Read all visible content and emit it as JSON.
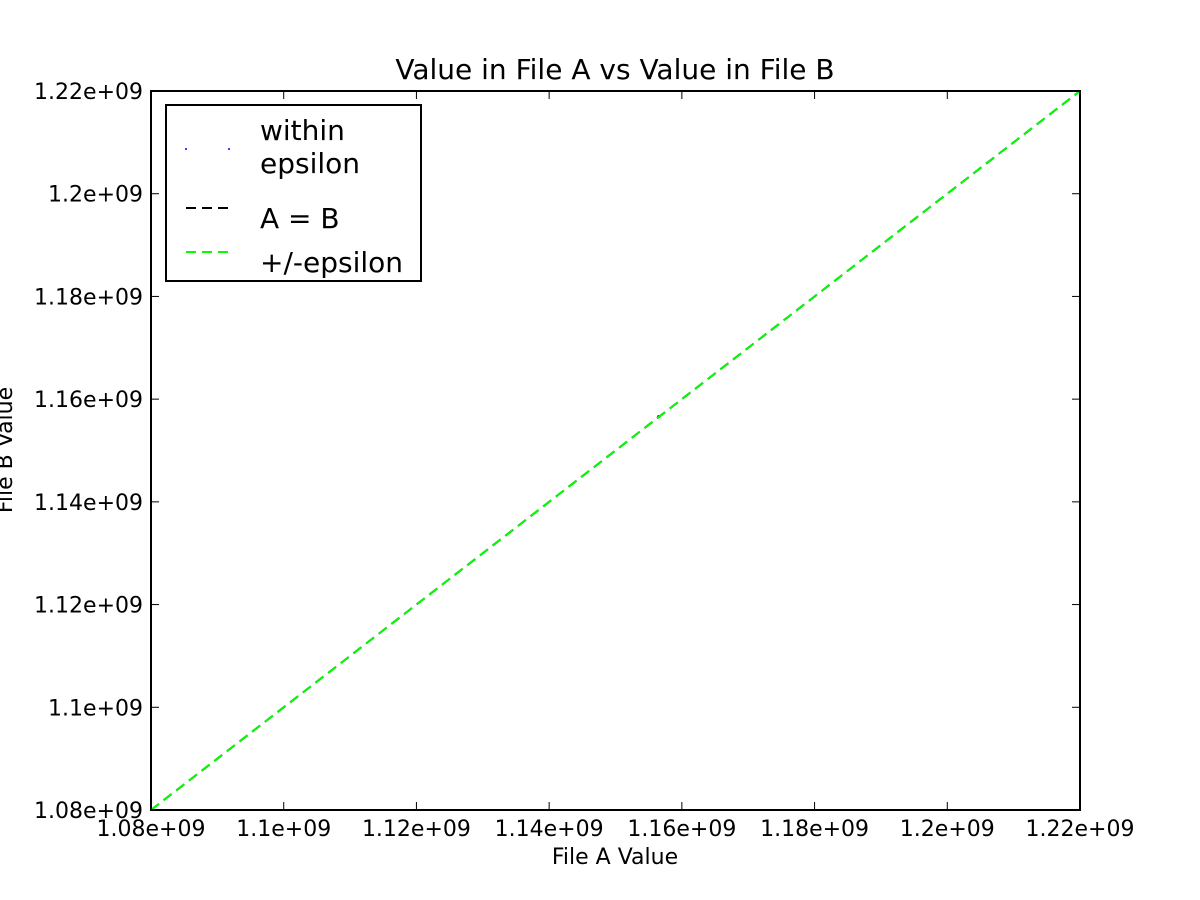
{
  "chart_data": {
    "type": "scatter",
    "title": "Value in File A vs Value in File B",
    "xlabel": "File A Value",
    "ylabel": "File B Value",
    "xlim": [
      1080000000,
      1220000000
    ],
    "ylim": [
      1080000000,
      1220000000
    ],
    "grid": false,
    "legend_position": "top-left",
    "x_ticks": [
      1080000000,
      1100000000,
      1120000000,
      1140000000,
      1160000000,
      1180000000,
      1200000000,
      1220000000
    ],
    "x_tick_labels": [
      "1.08e+09",
      "1.1e+09",
      "1.12e+09",
      "1.14e+09",
      "1.16e+09",
      "1.18e+09",
      "1.2e+09",
      "1.22e+09"
    ],
    "y_ticks": [
      1080000000,
      1100000000,
      1120000000,
      1140000000,
      1160000000,
      1180000000,
      1200000000,
      1220000000
    ],
    "y_tick_labels": [
      "1.08e+09",
      "1.1e+09",
      "1.12e+09",
      "1.14e+09",
      "1.16e+09",
      "1.18e+09",
      "1.2e+09",
      "1.22e+09"
    ],
    "series": [
      {
        "name": "within\nepsilon",
        "kind": "points",
        "color": "#0000ff",
        "x": [
          1156500000
        ],
        "y": [
          1156600000
        ]
      },
      {
        "name": "A = B",
        "kind": "dashed-line",
        "color": "#000000",
        "x": [
          1080000000,
          1220000000
        ],
        "y": [
          1080000000,
          1220000000
        ]
      },
      {
        "name": "+/-epsilon",
        "kind": "dashed-line",
        "color": "#00ff00",
        "x": [
          1080000000,
          1220000000
        ],
        "y": [
          1080000000,
          1220000000
        ]
      }
    ]
  }
}
